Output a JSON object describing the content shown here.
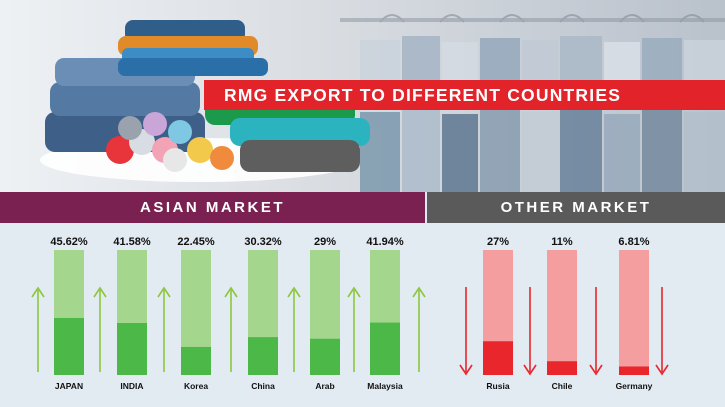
{
  "title": "RMG EXPORT TO DIFFERENT COUNTRIES",
  "sections": {
    "asian": "ASIAN MARKET",
    "other": "OTHER MARKET"
  },
  "colors": {
    "asian_fill": "#4cb848",
    "asian_track": "#a5d68e",
    "asian_arrow": "#8cc63f",
    "other_fill": "#e8262b",
    "other_track": "#f49ea0",
    "other_arrow": "#e8262b",
    "asian_header": "#7a2151",
    "other_header": "#5a5a5a",
    "banner": "#e3232a"
  },
  "chart_data": [
    {
      "type": "bar",
      "title": "ASIAN MARKET",
      "categories": [
        "JAPAN",
        "INDIA",
        "Korea",
        "China",
        "Arab",
        "Malaysia"
      ],
      "values": [
        45.62,
        41.58,
        22.45,
        30.32,
        29,
        41.94
      ],
      "labels": [
        "45.62%",
        "41.58%",
        "22.45%",
        "30.32%",
        "29%",
        "41.94%"
      ],
      "trend": "up"
    },
    {
      "type": "bar",
      "title": "OTHER MARKET",
      "categories": [
        "Rusia",
        "Chile",
        "Germany"
      ],
      "values": [
        27,
        11,
        6.81
      ],
      "labels": [
        "27%",
        "11%",
        "6.81%"
      ],
      "trend": "down"
    }
  ]
}
